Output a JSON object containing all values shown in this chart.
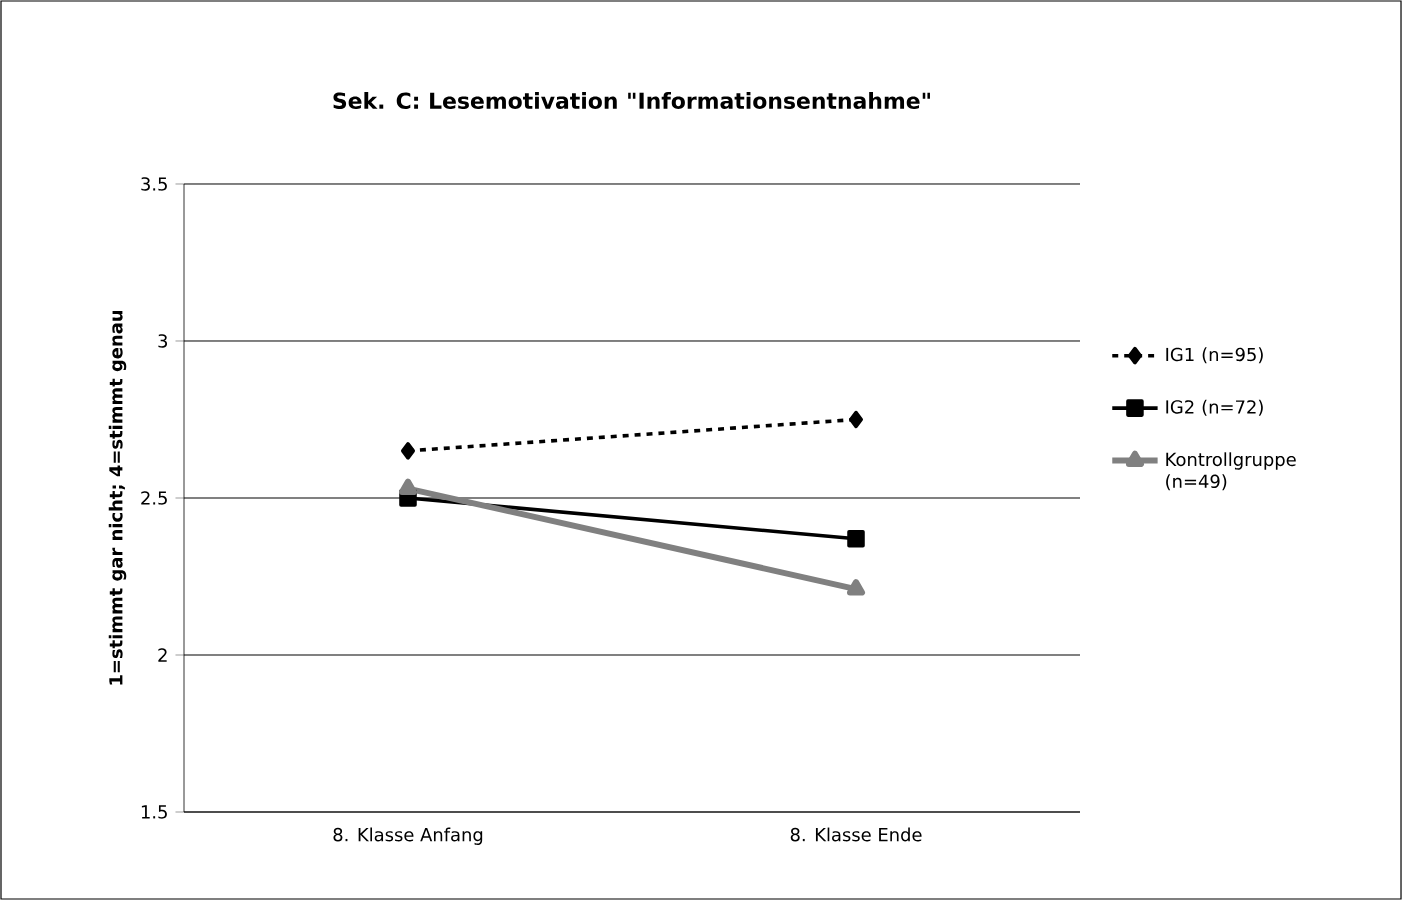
{
  "chart_data": {
    "type": "line",
    "title": "Sek. C: Lesemotivation \"Informationsentnahme\"",
    "ylabel": "1=stimmt gar nicht; 4=stimmt genau",
    "categories": [
      "8. Klasse Anfang",
      "8. Klasse Ende"
    ],
    "series": [
      {
        "name": "IG1 (n=95)",
        "color": "#000000",
        "values": [
          2.65,
          2.75
        ],
        "marker": "diamond",
        "line_style": "dashed"
      },
      {
        "name": "IG2 (n=72)",
        "color": "#000000",
        "values": [
          2.5,
          2.37
        ],
        "marker": "square",
        "line_style": "solid"
      },
      {
        "name": "Kontrollgruppe (n=49)",
        "color": "#808080",
        "values": [
          2.53,
          2.21
        ],
        "marker": "triangle",
        "line_style": "solid"
      }
    ],
    "ylim": [
      1.5,
      3.5
    ],
    "yticks": [
      1.5,
      2,
      2.5,
      3,
      3.5
    ],
    "grid": "y",
    "legend": "right"
  }
}
